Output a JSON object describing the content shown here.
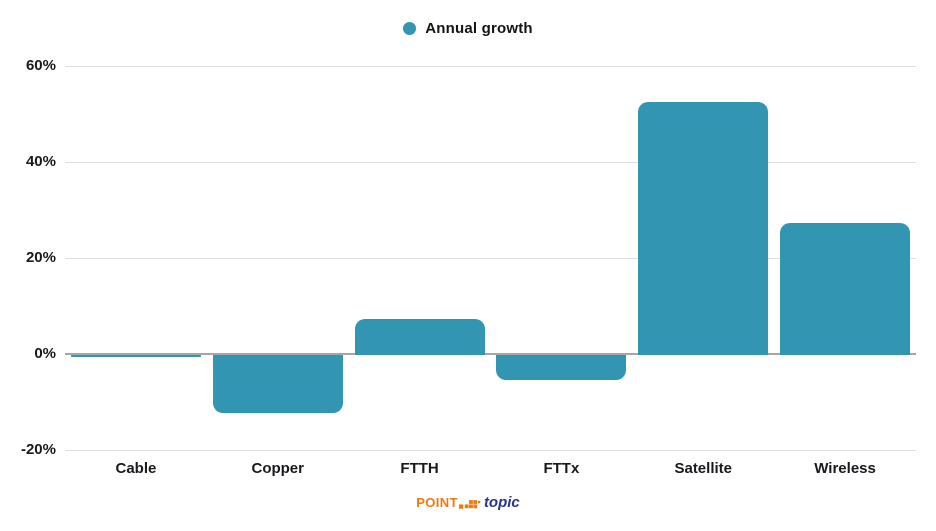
{
  "legend": {
    "label": "Annual growth"
  },
  "chart_data": {
    "type": "bar",
    "title": "",
    "categories": [
      "Cable",
      "Copper",
      "FTTH",
      "FTTx",
      "Satellite",
      "Wireless"
    ],
    "series": [
      {
        "name": "Annual growth",
        "values": [
          -0.4,
          -12,
          7.2,
          -5.2,
          52.4,
          27.2
        ]
      }
    ],
    "ylabel": "",
    "xlabel": "",
    "ylim": [
      -20,
      60
    ],
    "y_ticks": [
      {
        "value": 60,
        "label": "60%"
      },
      {
        "value": 40,
        "label": "40%"
      },
      {
        "value": 20,
        "label": "20%"
      },
      {
        "value": 0,
        "label": "0%"
      },
      {
        "value": -20,
        "label": "-20%"
      }
    ],
    "grid": true,
    "legend_position": "top-center",
    "bar_color": "#3295b2",
    "grid_color": "#dcdcdc",
    "zero_line_color": "#a6a6a6",
    "tick_label_color": "#17191c"
  },
  "footer": {
    "brand_primary": "POINT",
    "brand_secondary": "topic",
    "brand_orange": "#ee7b10",
    "brand_navy": "#27348b"
  }
}
